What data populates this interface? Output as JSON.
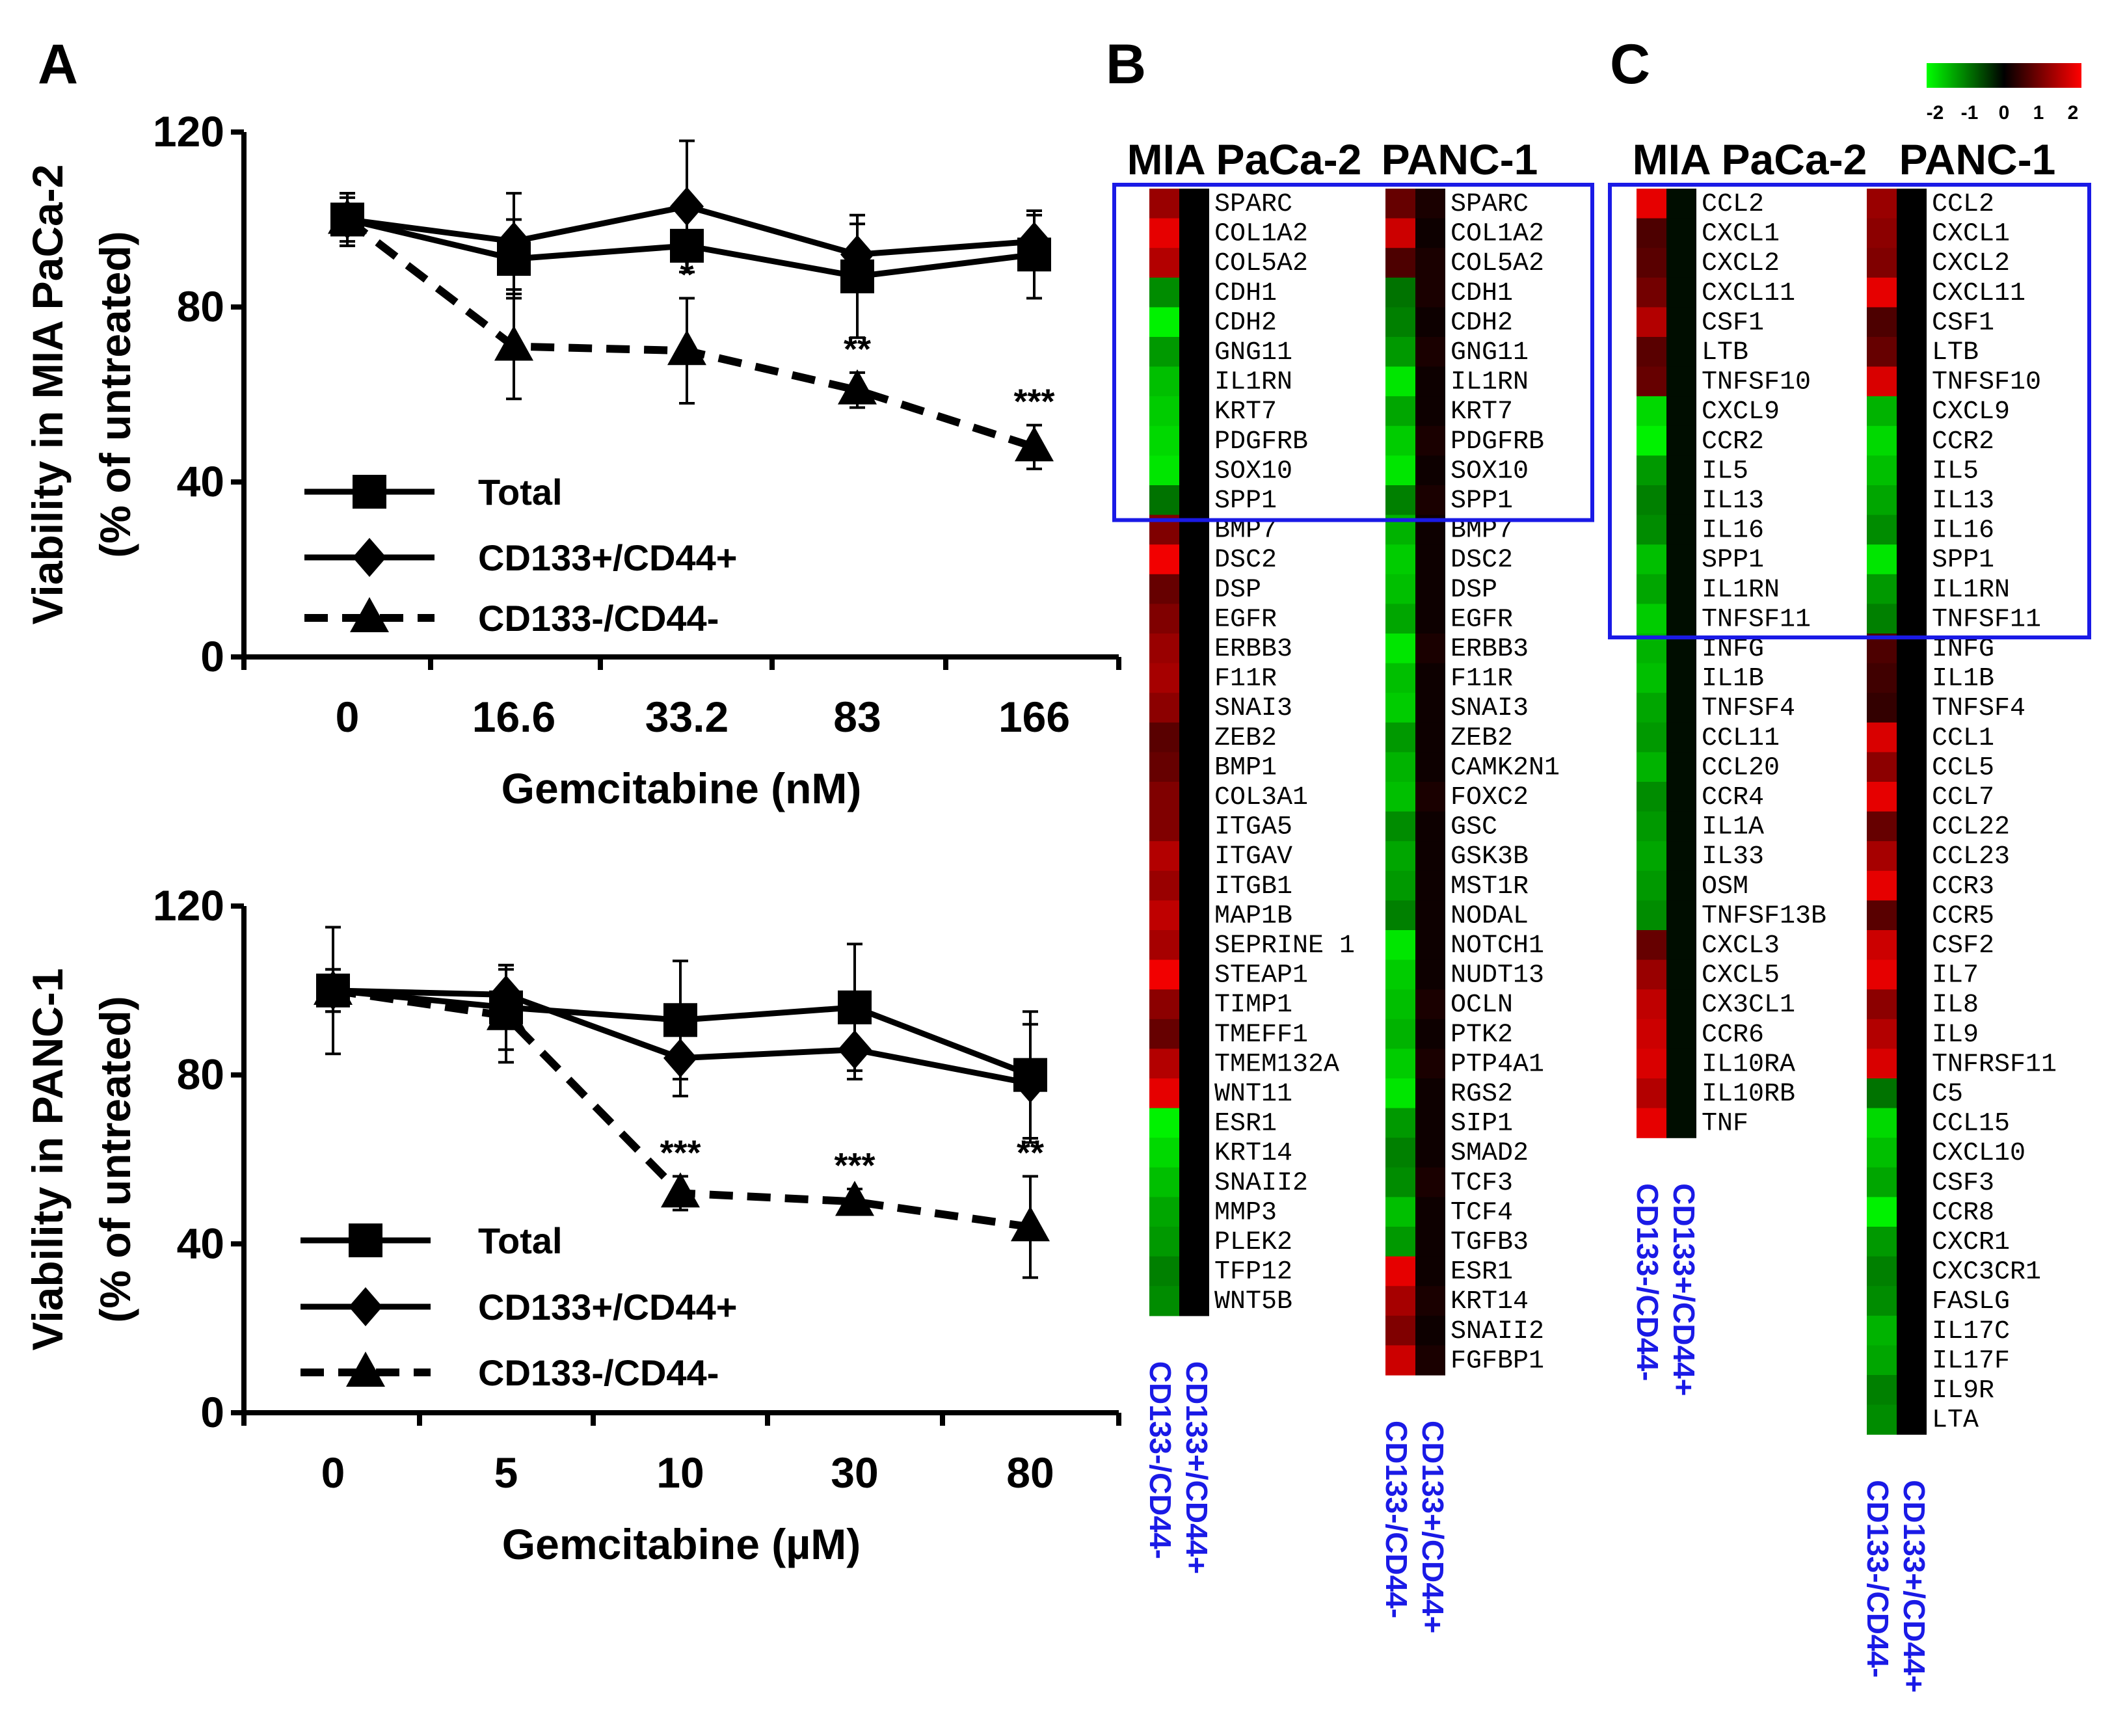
{
  "panel_labels": {
    "a": "A",
    "b": "B",
    "c": "C"
  },
  "colors": {
    "series_line": "#000000",
    "box": "#1a1ae6",
    "col_label": "#1a1ae6",
    "scale_low": "#00ff00",
    "scale_mid": "#000000",
    "scale_high": "#ff0000"
  },
  "chart_data": [
    {
      "type": "line",
      "panel": "A-top",
      "ylabel": "Viability in MIA PaCa-2",
      "ylabel2": "(% of untreated)",
      "xlabel": "Gemcitabine (nM)",
      "categories": [
        "0",
        "16.6",
        "33.2",
        "83",
        "166"
      ],
      "ylim": [
        0,
        120
      ],
      "yticks": [
        "0",
        "40",
        "80",
        "120"
      ],
      "series": [
        {
          "name": "Total",
          "marker": "square",
          "dash": "solid",
          "values": [
            100,
            91,
            94,
            87,
            92
          ],
          "err": [
            5,
            9,
            3,
            14,
            10
          ]
        },
        {
          "name": "CD133+/CD44+",
          "marker": "diamond",
          "dash": "solid",
          "values": [
            100,
            95,
            103,
            92,
            95
          ],
          "err": [
            6,
            11,
            15,
            7,
            6
          ]
        },
        {
          "name": "CD133-/CD44-",
          "marker": "triangle",
          "dash": "dashed",
          "values": [
            100,
            71,
            70,
            61,
            48
          ],
          "err": [
            6,
            12,
            12,
            4,
            5
          ]
        }
      ],
      "annotations": [
        "",
        "",
        "*",
        "**",
        "***"
      ]
    },
    {
      "type": "line",
      "panel": "A-bottom",
      "ylabel": "Viability in PANC-1",
      "ylabel2": "(% of untreated)",
      "xlabel": "Gemcitabine (µM)",
      "categories": [
        "0",
        "5",
        "10",
        "30",
        "80"
      ],
      "ylim": [
        0,
        120
      ],
      "yticks": [
        "0",
        "40",
        "80",
        "120"
      ],
      "series": [
        {
          "name": "Total",
          "marker": "square",
          "dash": "solid",
          "values": [
            100,
            96,
            93,
            96,
            80
          ],
          "err": [
            15,
            10,
            14,
            15,
            15
          ]
        },
        {
          "name": "CD133+/CD44+",
          "marker": "diamond",
          "dash": "solid",
          "values": [
            100,
            99,
            84,
            86,
            78
          ],
          "err": [
            5,
            7,
            9,
            7,
            14
          ]
        },
        {
          "name": "CD133-/CD44-",
          "marker": "triangle",
          "dash": "dashed",
          "values": [
            100,
            94,
            52,
            50,
            44
          ],
          "err": [
            5,
            11,
            4,
            3,
            12
          ]
        }
      ],
      "annotations": [
        "",
        "",
        "***",
        "***",
        "**"
      ]
    },
    {
      "type": "heatmap",
      "panel": "B",
      "color_scale": {
        "min": -2,
        "max": 2,
        "ticks": [
          "-2",
          "-1",
          "0",
          "1",
          "2"
        ]
      },
      "columns": [
        "CD133+/CD44+",
        "CD133-/CD44-"
      ],
      "heatmaps": [
        {
          "title": "MIA PaCa-2",
          "genes": [
            "SPARC",
            "COL1A2",
            "COL5A2",
            "CDH1",
            "CDH2",
            "GNG11",
            "IL1RN",
            "KRT7",
            "PDGFRB",
            "SOX10",
            "SPP1",
            "BMP7",
            "DSC2",
            "DSP",
            "EGFR",
            "ERBB3",
            "F11R",
            "SNAI3",
            "ZEB2",
            "BMP1",
            "COL3A1",
            "ITGA5",
            "ITGAV",
            "ITGB1",
            "MAP1B",
            "SEPRINE 1",
            "STEAP1",
            "TIMP1",
            "TMEFF1",
            "TMEM132A",
            "WNT11",
            "ESR1",
            "KRT14",
            "SNAII2",
            "MMP3",
            "PLEK2",
            "TFP12",
            "WNT5B"
          ],
          "values": [
            [
              1.2,
              0
            ],
            [
              1.8,
              0
            ],
            [
              1.4,
              0
            ],
            [
              -1.1,
              0
            ],
            [
              -1.9,
              0
            ],
            [
              -1.2,
              0
            ],
            [
              -1.5,
              0
            ],
            [
              -1.6,
              0
            ],
            [
              -1.7,
              0
            ],
            [
              -1.8,
              0
            ],
            [
              -0.9,
              0
            ],
            [
              1.0,
              0
            ],
            [
              1.9,
              0
            ],
            [
              0.8,
              0
            ],
            [
              1.0,
              0
            ],
            [
              1.2,
              0
            ],
            [
              1.3,
              0
            ],
            [
              1.1,
              0
            ],
            [
              0.7,
              0
            ],
            [
              0.8,
              0
            ],
            [
              1.0,
              0
            ],
            [
              1.0,
              0
            ],
            [
              1.4,
              0
            ],
            [
              1.2,
              0
            ],
            [
              1.5,
              0
            ],
            [
              1.3,
              0
            ],
            [
              1.9,
              0
            ],
            [
              1.1,
              0
            ],
            [
              0.8,
              0
            ],
            [
              1.4,
              0
            ],
            [
              1.8,
              0
            ],
            [
              -1.9,
              0
            ],
            [
              -1.7,
              0
            ],
            [
              -1.5,
              0
            ],
            [
              -1.3,
              0
            ],
            [
              -1.2,
              0
            ],
            [
              -1.0,
              0
            ],
            [
              -1.1,
              0
            ]
          ],
          "box_rows": 11
        },
        {
          "title": "PANC-1",
          "genes": [
            "SPARC",
            "COL1A2",
            "COL5A2",
            "CDH1",
            "CDH2",
            "GNG11",
            "IL1RN",
            "KRT7",
            "PDGFRB",
            "SOX10",
            "SPP1",
            "BMP7",
            "DSC2",
            "DSP",
            "EGFR",
            "ERBB3",
            "F11R",
            "SNAI3",
            "ZEB2",
            "CAMK2N1",
            "FOXC2",
            "GSC",
            "GSK3B",
            "MST1R",
            "NODAL",
            "NOTCH1",
            "NUDT13",
            "OCLN",
            "PTK2",
            "PTP4A1",
            "RGS2",
            "SIP1",
            "SMAD2",
            "TCF3",
            "TCF4",
            "TGFB3",
            "ESR1",
            "KRT14",
            "SNAII2",
            "FGFBP1"
          ],
          "values": [
            [
              0.8,
              0.2
            ],
            [
              1.6,
              0.1
            ],
            [
              0.6,
              0.2
            ],
            [
              -0.9,
              0.2
            ],
            [
              -1.0,
              0.1
            ],
            [
              -1.2,
              0.2
            ],
            [
              -1.8,
              0.1
            ],
            [
              -1.3,
              0.1
            ],
            [
              -1.6,
              0.2
            ],
            [
              -1.8,
              0.1
            ],
            [
              -1.0,
              0.2
            ],
            [
              -1.4,
              0.1
            ],
            [
              -1.6,
              0.1
            ],
            [
              -1.5,
              0.1
            ],
            [
              -1.3,
              0.1
            ],
            [
              -1.8,
              0.2
            ],
            [
              -1.5,
              0.1
            ],
            [
              -1.6,
              0.1
            ],
            [
              -1.2,
              0.1
            ],
            [
              -1.4,
              0.1
            ],
            [
              -1.5,
              0.2
            ],
            [
              -1.1,
              0.1
            ],
            [
              -1.3,
              0.1
            ],
            [
              -1.2,
              0.1
            ],
            [
              -1.0,
              0.1
            ],
            [
              -1.8,
              0.1
            ],
            [
              -1.6,
              0.1
            ],
            [
              -1.5,
              0.2
            ],
            [
              -1.4,
              0.1
            ],
            [
              -1.6,
              0.2
            ],
            [
              -1.8,
              0.1
            ],
            [
              -1.2,
              0.1
            ],
            [
              -1.0,
              0.1
            ],
            [
              -1.1,
              0.2
            ],
            [
              -1.5,
              0.1
            ],
            [
              -1.2,
              0.1
            ],
            [
              1.8,
              0.1
            ],
            [
              1.3,
              0.2
            ],
            [
              1.0,
              0.1
            ],
            [
              1.6,
              0.2
            ]
          ],
          "box_rows": 11
        }
      ]
    },
    {
      "type": "heatmap",
      "panel": "C",
      "color_scale": {
        "min": -2,
        "max": 2,
        "ticks": [
          "-2",
          "-1",
          "0",
          "1",
          "2"
        ]
      },
      "columns": [
        "CD133+/CD44+",
        "CD133-/CD44-"
      ],
      "heatmaps": [
        {
          "title": "MIA PaCa-2",
          "genes": [
            "CCL2",
            "CXCL1",
            "CXCL2",
            "CXCL11",
            "CSF1",
            "LTB",
            "TNFSF10",
            "CXCL9",
            "CCR2",
            "IL5",
            "IL13",
            "IL16",
            "SPP1",
            "IL1RN",
            "TNFSF11",
            "INFG",
            "IL1B",
            "TNFSF4",
            "CCL11",
            "CCL20",
            "CCR4",
            "IL1A",
            "IL33",
            "OSM",
            "TNFSF13B",
            "CXCL3",
            "CXCL5",
            "CX3CL1",
            "CCR6",
            "IL10RA",
            "IL10RB",
            "TNF"
          ],
          "values": [
            [
              1.8,
              -0.1
            ],
            [
              0.6,
              -0.1
            ],
            [
              0.7,
              -0.1
            ],
            [
              0.9,
              -0.1
            ],
            [
              1.4,
              -0.1
            ],
            [
              0.7,
              -0.1
            ],
            [
              0.8,
              -0.1
            ],
            [
              -1.7,
              -0.1
            ],
            [
              -1.9,
              -0.1
            ],
            [
              -1.2,
              -0.1
            ],
            [
              -1.0,
              -0.1
            ],
            [
              -1.1,
              -0.1
            ],
            [
              -1.5,
              -0.1
            ],
            [
              -1.3,
              -0.1
            ],
            [
              -1.6,
              -0.1
            ],
            [
              -1.4,
              -0.1
            ],
            [
              -1.5,
              -0.1
            ],
            [
              -1.3,
              -0.1
            ],
            [
              -1.2,
              -0.1
            ],
            [
              -1.4,
              -0.1
            ],
            [
              -1.1,
              -0.1
            ],
            [
              -1.2,
              -0.1
            ],
            [
              -1.3,
              -0.1
            ],
            [
              -1.2,
              -0.1
            ],
            [
              -1.1,
              -0.1
            ],
            [
              0.8,
              -0.1
            ],
            [
              1.2,
              -0.1
            ],
            [
              1.5,
              -0.1
            ],
            [
              1.6,
              -0.1
            ],
            [
              1.7,
              -0.1
            ],
            [
              1.4,
              -0.1
            ],
            [
              1.8,
              -0.1
            ]
          ],
          "box_rows": 15
        },
        {
          "title": "PANC-1",
          "genes": [
            "CCL2",
            "CXCL1",
            "CXCL2",
            "CXCL11",
            "CSF1",
            "LTB",
            "TNFSF10",
            "CXCL9",
            "CCR2",
            "IL5",
            "IL13",
            "IL16",
            "SPP1",
            "IL1RN",
            "TNFSF11",
            "INFG",
            "IL1B",
            "TNFSF4",
            "CCL1",
            "CCL5",
            "CCL7",
            "CCL22",
            "CCL23",
            "CCR3",
            "CCR5",
            "CSF2",
            "IL7",
            "IL8",
            "IL9",
            "TNFRSF11",
            "C5",
            "CCL15",
            "CXCL10",
            "CSF3",
            "CCR8",
            "CXCR1",
            "CXC3CR1",
            "FASLG",
            "IL17C",
            "IL17F",
            "IL9R",
            "LTA"
          ],
          "values": [
            [
              1.2,
              0
            ],
            [
              1.1,
              0
            ],
            [
              1.0,
              0
            ],
            [
              1.8,
              0
            ],
            [
              0.6,
              0
            ],
            [
              0.8,
              0
            ],
            [
              1.7,
              0
            ],
            [
              -1.4,
              0
            ],
            [
              -1.7,
              0
            ],
            [
              -1.5,
              0
            ],
            [
              -1.3,
              0
            ],
            [
              -1.1,
              0
            ],
            [
              -1.8,
              0
            ],
            [
              -1.2,
              0
            ],
            [
              -1.0,
              0
            ],
            [
              0.6,
              0
            ],
            [
              0.5,
              0
            ],
            [
              0.4,
              0
            ],
            [
              1.7,
              0
            ],
            [
              1.1,
              0
            ],
            [
              1.8,
              0
            ],
            [
              0.8,
              0
            ],
            [
              1.3,
              0
            ],
            [
              1.8,
              0
            ],
            [
              0.7,
              0
            ],
            [
              1.6,
              0
            ],
            [
              1.8,
              0
            ],
            [
              1.1,
              0
            ],
            [
              1.4,
              0
            ],
            [
              1.7,
              0
            ],
            [
              -0.9,
              0
            ],
            [
              -1.7,
              0
            ],
            [
              -1.5,
              0
            ],
            [
              -1.3,
              0
            ],
            [
              -1.9,
              0
            ],
            [
              -1.2,
              0
            ],
            [
              -1.0,
              0
            ],
            [
              -1.1,
              0
            ],
            [
              -1.4,
              0
            ],
            [
              -1.3,
              0
            ],
            [
              -1.0,
              0
            ],
            [
              -1.1,
              0
            ]
          ],
          "box_rows": 15
        }
      ]
    }
  ]
}
